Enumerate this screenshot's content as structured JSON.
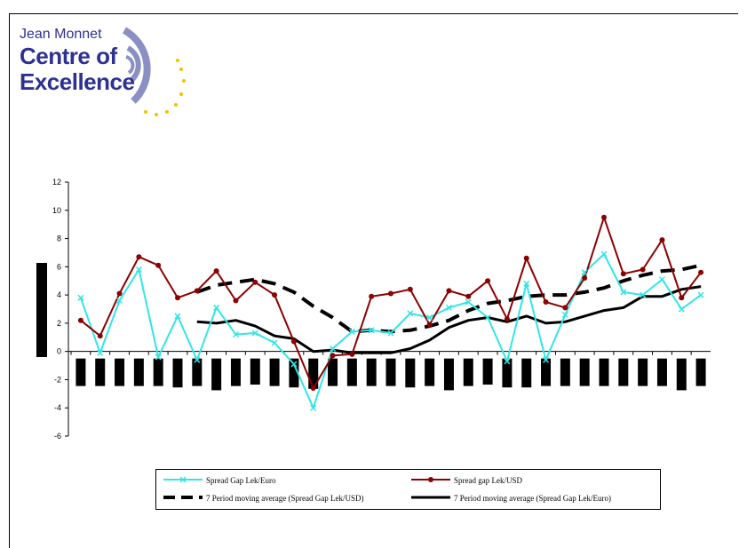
{
  "logo": {
    "line1": "Jean Monnet",
    "line2": "Centre of",
    "line3": "Excellence",
    "colors": {
      "text": "#2e3192",
      "arc": "#8a8fc4",
      "stars": "#f2c200"
    }
  },
  "chart_data": {
    "type": "line",
    "title": "",
    "xlabel": "",
    "ylabel": "",
    "ylim": [
      -6,
      12
    ],
    "yticks": [
      -6,
      -4,
      -2,
      0,
      2,
      4,
      6,
      8,
      10,
      12
    ],
    "x": [
      1,
      2,
      3,
      4,
      5,
      6,
      7,
      8,
      9,
      10,
      11,
      12,
      13,
      14,
      15,
      16,
      17,
      18,
      19,
      20,
      21,
      22,
      23,
      24,
      25,
      26,
      27,
      28,
      29,
      30,
      31,
      32,
      33
    ],
    "grid": false,
    "legend_position": "bottom",
    "series": [
      {
        "name": "Spread Gap Lek/Euro",
        "color": "#33e5e5",
        "marker": "x",
        "style": "solid",
        "values": [
          3.8,
          -0.1,
          3.6,
          5.8,
          -0.4,
          2.5,
          -0.6,
          3.1,
          1.2,
          1.3,
          0.6,
          -0.9,
          -4.0,
          0.2,
          1.4,
          1.5,
          1.3,
          2.7,
          2.4,
          3.1,
          3.5,
          2.4,
          -0.7,
          4.8,
          -0.6,
          2.6,
          5.6,
          6.9,
          4.2,
          4.0,
          5.1,
          3.0,
          4.0
        ]
      },
      {
        "name": "Spread gap Lek/USD",
        "color": "#8b0000",
        "marker": "circle",
        "style": "solid",
        "values": [
          2.2,
          1.1,
          4.1,
          6.7,
          6.1,
          3.8,
          4.3,
          5.7,
          3.6,
          4.9,
          4.0,
          0.7,
          -2.6,
          -0.3,
          -0.2,
          3.9,
          4.1,
          4.4,
          1.9,
          4.3,
          3.9,
          5.0,
          2.3,
          6.6,
          3.5,
          3.1,
          5.2,
          9.5,
          5.5,
          5.8,
          7.9,
          3.8,
          5.6
        ]
      },
      {
        "name": "7 Period moving average (Spread Gap Lek/USD)",
        "color": "#000000",
        "marker": "none",
        "style": "dashed",
        "values": [
          null,
          null,
          null,
          null,
          null,
          null,
          4.2,
          4.7,
          4.9,
          5.1,
          4.8,
          4.2,
          3.2,
          2.4,
          1.4,
          1.5,
          1.4,
          1.5,
          1.8,
          2.2,
          2.9,
          3.4,
          3.6,
          3.9,
          4.0,
          4.0,
          4.2,
          4.5,
          5.0,
          5.4,
          5.7,
          5.8,
          6.1
        ]
      },
      {
        "name": "7 Period moving average (Spread Gap Lek/Euro)",
        "color": "#000000",
        "marker": "none",
        "style": "solid",
        "values": [
          null,
          null,
          null,
          null,
          null,
          null,
          2.1,
          2.0,
          2.2,
          1.8,
          1.1,
          0.9,
          0.0,
          0.1,
          -0.1,
          -0.1,
          -0.1,
          0.2,
          0.8,
          1.7,
          2.2,
          2.4,
          2.1,
          2.5,
          2.0,
          2.1,
          2.5,
          2.9,
          3.1,
          3.9,
          3.9,
          4.4,
          4.6
        ]
      },
      {
        "name": "",
        "type": "bar",
        "color": "#000000",
        "values": [
          -2.2,
          -2.2,
          -2.2,
          -2.2,
          -2.2,
          -2.3,
          -2.2,
          -2.5,
          -2.2,
          -2.1,
          -2.2,
          -2.3,
          -2.4,
          -2.2,
          -2.2,
          -2.2,
          -2.2,
          -2.3,
          -2.2,
          -2.5,
          -2.2,
          -2.1,
          -2.3,
          -2.3,
          -2.2,
          -2.2,
          -2.2,
          -2.2,
          -2.2,
          -2.2,
          -2.2,
          -2.5,
          -2.2
        ]
      }
    ],
    "side_bar_color": "#000000"
  }
}
